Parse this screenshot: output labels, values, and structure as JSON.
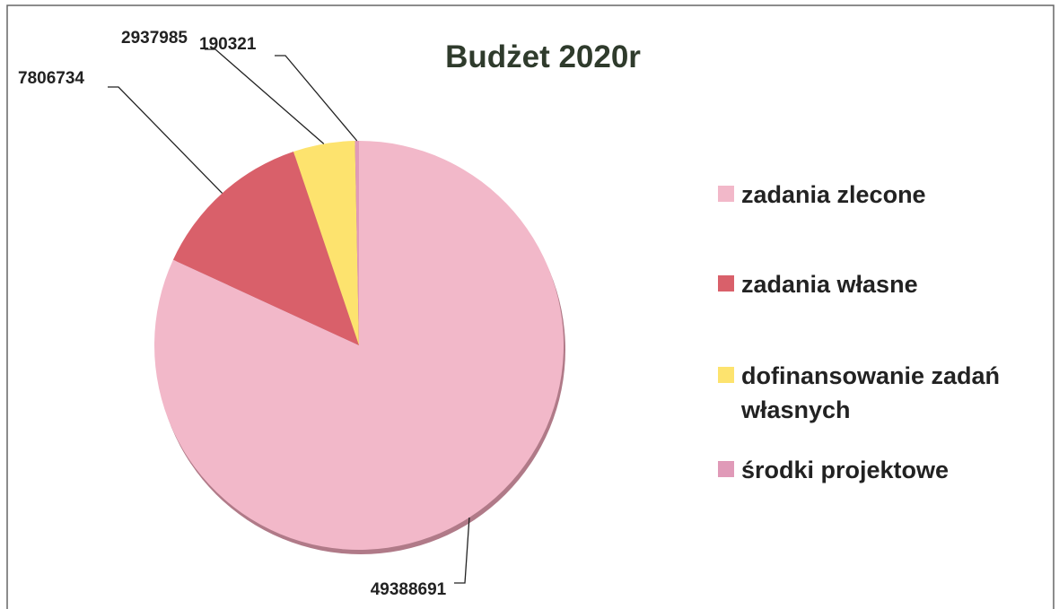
{
  "chart_data": {
    "type": "pie",
    "title": "Budżet 2020r",
    "categories": [
      "zadania zlecone",
      "zadania własne",
      "dofinansowanie zadań własnych",
      "środki projektowe"
    ],
    "values": [
      49388691,
      7806734,
      2937985,
      190321
    ],
    "colors": [
      "#f2b8c9",
      "#d9606a",
      "#fde36e",
      "#e09ab8"
    ],
    "legend": "right"
  }
}
